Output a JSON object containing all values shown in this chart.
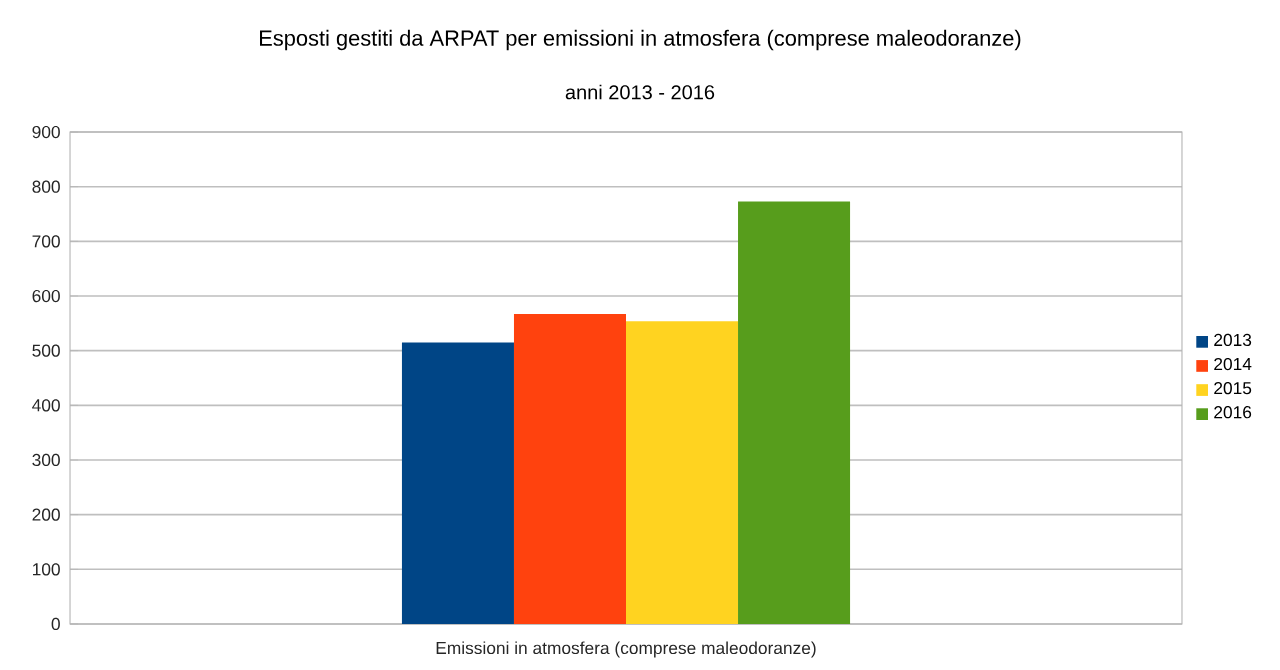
{
  "chart_data": {
    "type": "bar",
    "title": "Esposti gestiti da ARPAT per emissioni in atmosfera (comprese maleodoranze)",
    "subtitle": "anni 2013 - 2016",
    "categories": [
      "Emissioni in atmosfera (comprese maleodoranze)"
    ],
    "series": [
      {
        "name": "2013",
        "color": "#004586",
        "values": [
          515
        ]
      },
      {
        "name": "2014",
        "color": "#ff420e",
        "values": [
          567
        ]
      },
      {
        "name": "2015",
        "color": "#ffd320",
        "values": [
          554
        ]
      },
      {
        "name": "2016",
        "color": "#579d1c",
        "values": [
          773
        ]
      }
    ],
    "ylim": [
      0,
      900
    ],
    "yticks": [
      0,
      100,
      200,
      300,
      400,
      500,
      600,
      700,
      800,
      900
    ],
    "grid": "y",
    "legend": "right"
  }
}
